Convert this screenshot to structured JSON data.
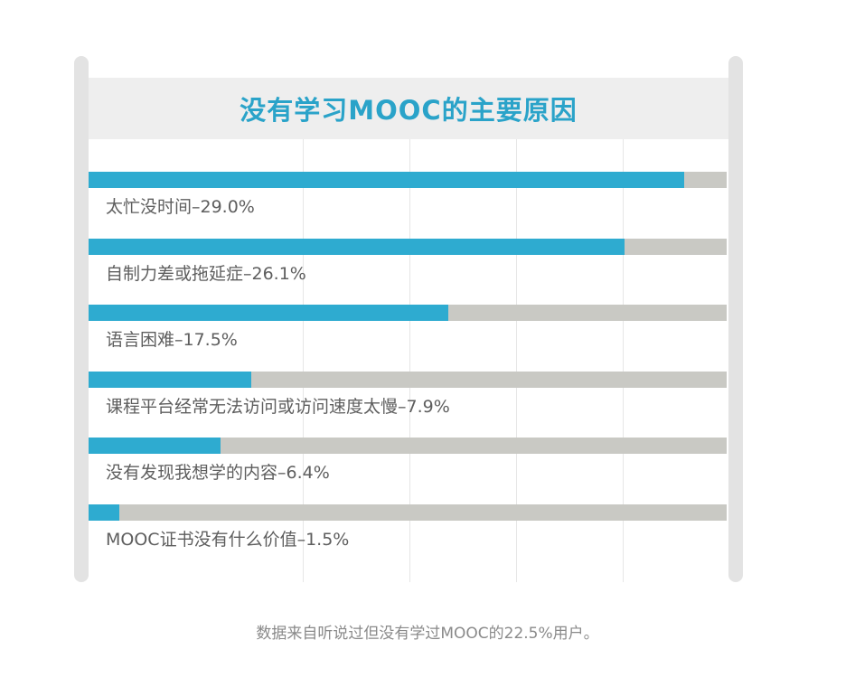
{
  "chart_data": {
    "type": "bar",
    "orientation": "horizontal",
    "title": "没有学习MOOC的主要原因",
    "categories": [
      "太忙没时间",
      "自制力差或拖延症",
      "语言困难",
      "课程平台经常无法访问或访问速度太慢",
      "没有发现我想学的内容",
      "MOOC证书没有什么价值"
    ],
    "labels": [
      "太忙没时间–29.0%",
      "自制力差或拖延症–26.1%",
      "语言困难–17.5%",
      "课程平台经常无法访问或访问速度太慢–7.9%",
      "没有发现我想学的内容–6.4%",
      "MOOC证书没有什么价值–1.5%"
    ],
    "values": [
      29.0,
      26.1,
      17.5,
      7.9,
      6.4,
      1.5
    ],
    "unit": "%",
    "xlim": [
      0,
      30
    ],
    "grid": true,
    "note": "数据来自听说过但没有学过MOOC的22.5%用户。"
  },
  "colors": {
    "title": "#2aa3c9",
    "bar_fill": "#2eabd0",
    "bar_track": "#c9c9c4",
    "title_band": "#eeeeee",
    "frame": "#e3e3e3",
    "label_text": "#5e5e5e",
    "note_text": "#8a8a8a"
  }
}
